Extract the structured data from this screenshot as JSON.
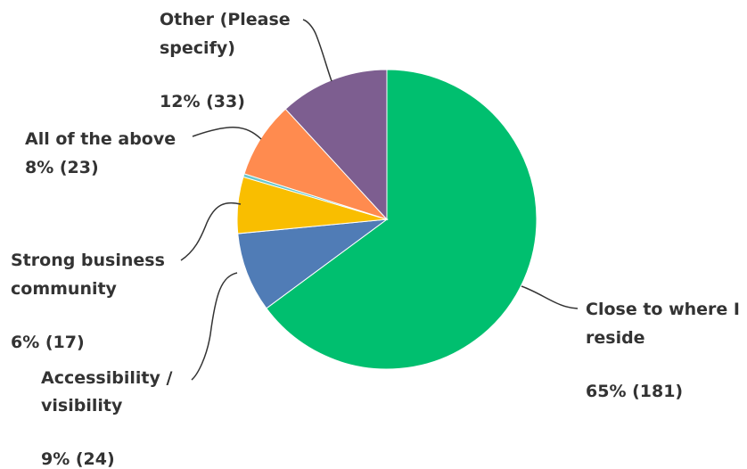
{
  "chart_data": {
    "type": "pie",
    "start_angle_deg": 0,
    "direction": "clockwise",
    "slices": [
      {
        "label_lines": [
          "Close to where I",
          "reside"
        ],
        "value_text": "65% (181)",
        "count": 181,
        "percent": 65,
        "color": "#00BF6F"
      },
      {
        "label_lines": [
          "Accessibility /",
          "visibility"
        ],
        "value_text": "9% (24)",
        "count": 24,
        "percent": 9,
        "color": "#507CB6"
      },
      {
        "label_lines": [
          "Strong business",
          "community"
        ],
        "value_text": "6% (17)",
        "count": 17,
        "percent": 6,
        "color": "#F9BE00"
      },
      {
        "label_lines": [],
        "value_text": "",
        "count": 1,
        "percent": 0,
        "color": "#6BC8CD"
      },
      {
        "label_lines": [
          "All of the above"
        ],
        "value_text": "8% (23)",
        "count": 23,
        "percent": 8,
        "color": "#FF8B4F"
      },
      {
        "label_lines": [
          "Other (Please",
          "specify)"
        ],
        "value_text": "12% (33)",
        "count": 33,
        "percent": 12,
        "color": "#7D5E90"
      }
    ]
  }
}
